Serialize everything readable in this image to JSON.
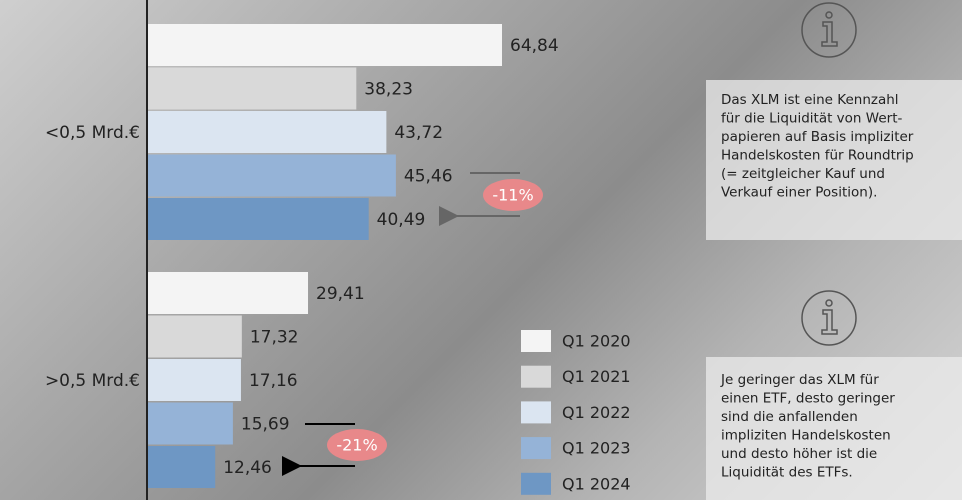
{
  "chart_data": {
    "type": "bar",
    "orientation": "horizontal",
    "categories": [
      "<0,5 Mrd.€",
      ">0,5 Mrd.€"
    ],
    "series": [
      {
        "name": "Q1 2020",
        "color": "#f4f4f4",
        "values": [
          64.84,
          29.41
        ],
        "value_labels": [
          "64,84",
          "29,41"
        ]
      },
      {
        "name": "Q1 2021",
        "color": "#d9d9d9",
        "values": [
          38.23,
          17.32
        ],
        "value_labels": [
          "38,23",
          "17,32"
        ]
      },
      {
        "name": "Q1 2022",
        "color": "#dbe5f1",
        "values": [
          43.72,
          17.16
        ],
        "value_labels": [
          "43,72",
          "17,16"
        ]
      },
      {
        "name": "Q1 2023",
        "color": "#95b3d7",
        "values": [
          45.46,
          15.69
        ],
        "value_labels": [
          "45,46",
          "15,69"
        ]
      },
      {
        "name": "Q1 2024",
        "color": "#6e97c4",
        "values": [
          40.49,
          12.46
        ],
        "value_labels": [
          "40,49",
          "12,46"
        ]
      }
    ],
    "annotations": [
      "-11%",
      "-21%"
    ],
    "annotation_color": "#e8888a"
  },
  "info_boxes": [
    {
      "lines": [
        "Das XLM ist eine Kennzahl",
        "für die Liquidität von Wert-",
        "papieren auf Basis impliziter",
        "Handelskosten für Roundtrip",
        "(= zeitgleicher Kauf und",
        "Verkauf einer Position)."
      ]
    },
    {
      "lines": [
        "Je geringer das XLM für",
        "einen ETF, desto geringer",
        "sind die anfallenden",
        "impliziten Handelskosten",
        "und desto höher ist die",
        "Liquidität des ETFs."
      ]
    }
  ]
}
